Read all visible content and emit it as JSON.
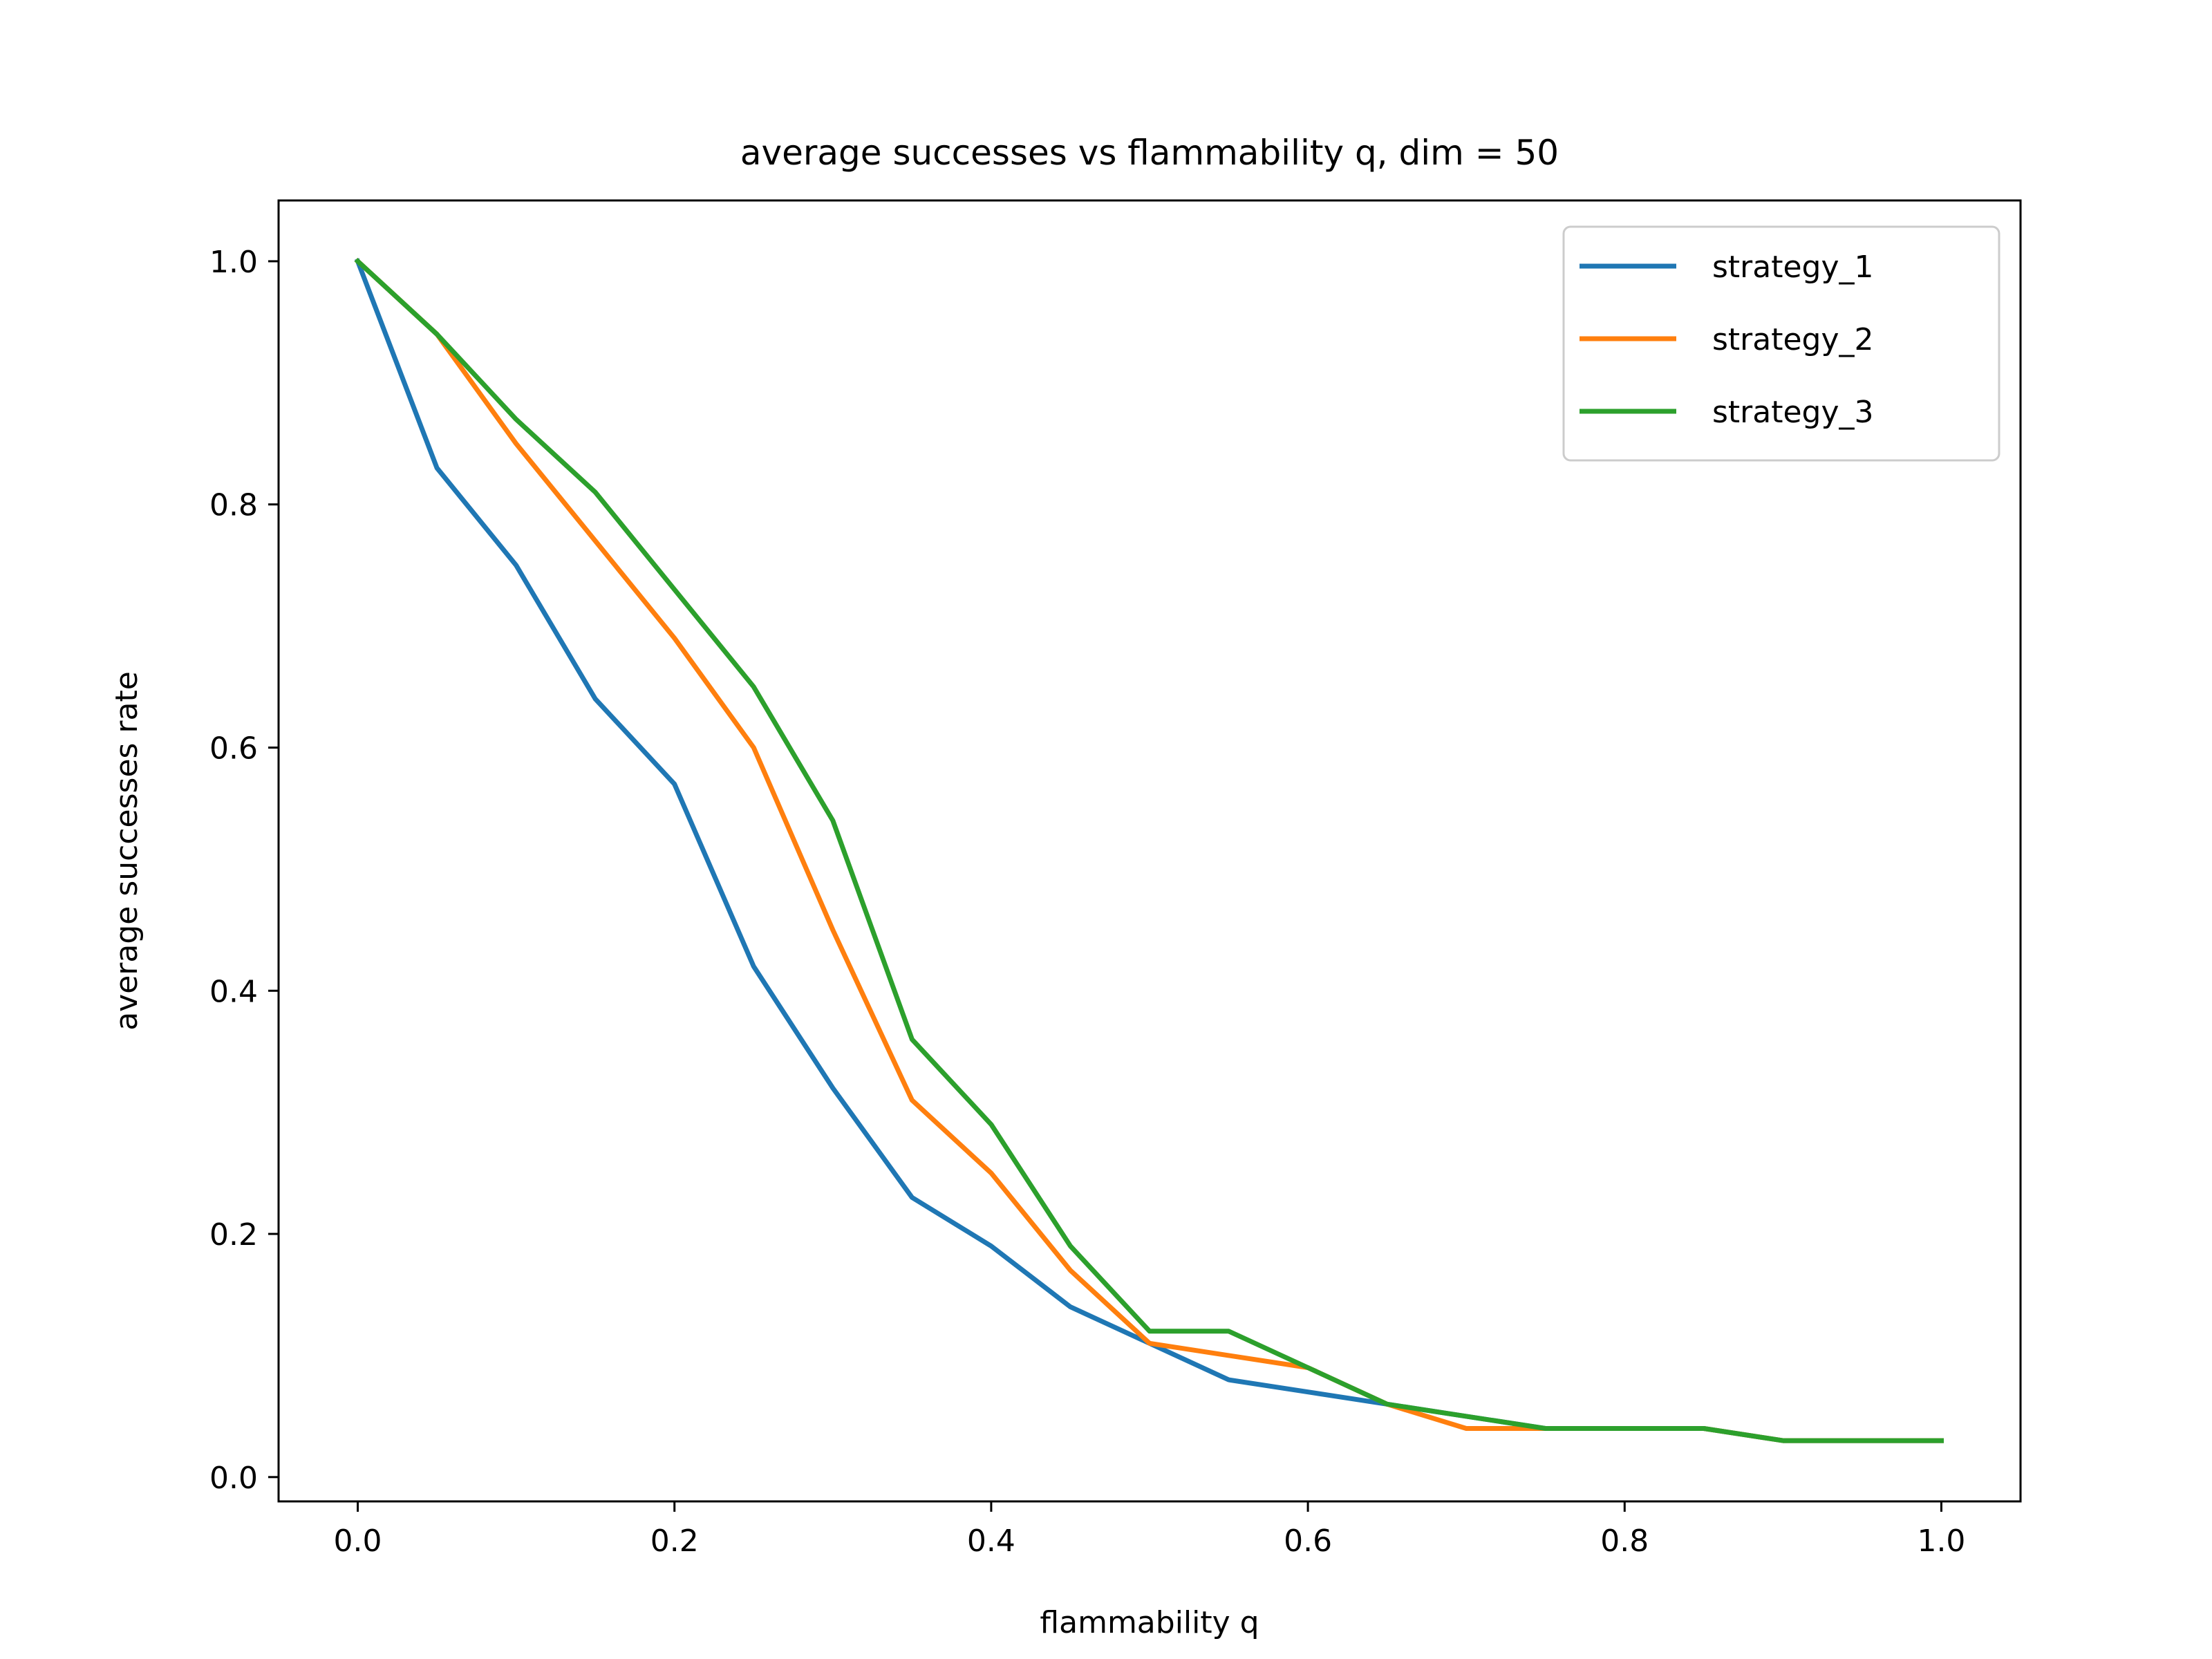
{
  "chart_data": {
    "type": "line",
    "title": "average successes vs flammability q, dim = 50",
    "xlabel": "flammability q",
    "ylabel": "average successes rate",
    "xlim": [
      -0.05,
      1.05
    ],
    "ylim": [
      -0.02,
      1.05
    ],
    "xticks": [
      0.0,
      0.2,
      0.4,
      0.6,
      0.8,
      1.0
    ],
    "xtick_labels": [
      "0.0",
      "0.2",
      "0.4",
      "0.6",
      "0.8",
      "1.0"
    ],
    "yticks": [
      0.0,
      0.2,
      0.4,
      0.6,
      0.8,
      1.0
    ],
    "ytick_labels": [
      "0.0",
      "0.2",
      "0.4",
      "0.6",
      "0.8",
      "1.0"
    ],
    "grid": false,
    "legend_position": "top-right",
    "x": [
      0.0,
      0.05,
      0.1,
      0.15,
      0.2,
      0.25,
      0.3,
      0.35,
      0.4,
      0.45,
      0.5,
      0.55,
      0.6,
      0.65,
      0.7,
      0.75,
      0.8,
      0.85,
      0.9,
      0.95,
      1.0
    ],
    "series": [
      {
        "name": "strategy_1",
        "color": "#1f77b4",
        "values": [
          1.0,
          0.83,
          0.75,
          0.64,
          0.57,
          0.42,
          0.32,
          0.23,
          0.19,
          0.14,
          0.11,
          0.08,
          0.07,
          0.06,
          0.05,
          0.04,
          0.04,
          0.04,
          0.03,
          0.03,
          0.03
        ]
      },
      {
        "name": "strategy_2",
        "color": "#ff7f0e",
        "values": [
          1.0,
          0.94,
          0.85,
          0.77,
          0.69,
          0.6,
          0.45,
          0.31,
          0.25,
          0.17,
          0.11,
          0.1,
          0.09,
          0.06,
          0.04,
          0.04,
          0.04,
          0.04,
          0.03,
          0.03,
          0.03
        ]
      },
      {
        "name": "strategy_3",
        "color": "#2ca02c",
        "values": [
          1.0,
          0.94,
          0.87,
          0.81,
          0.73,
          0.65,
          0.54,
          0.36,
          0.29,
          0.19,
          0.12,
          0.12,
          0.09,
          0.06,
          0.05,
          0.04,
          0.04,
          0.04,
          0.03,
          0.03,
          0.03
        ]
      }
    ]
  }
}
